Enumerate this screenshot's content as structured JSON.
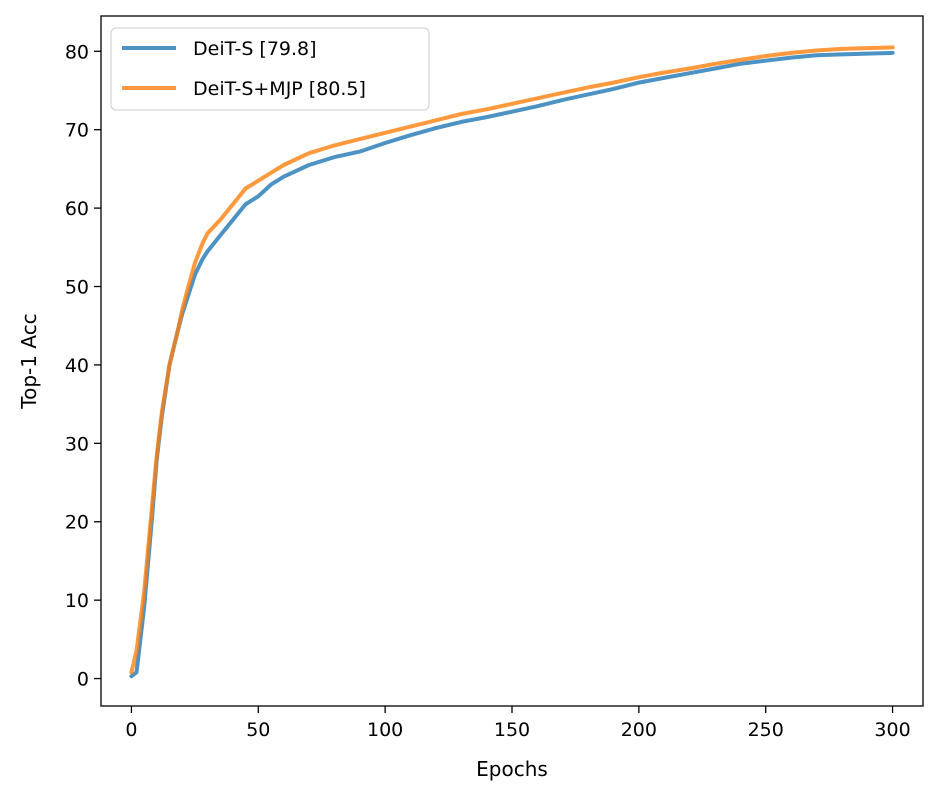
{
  "chart_data": {
    "type": "line",
    "title": "",
    "xlabel": "Epochs",
    "ylabel": "Top-1 Acc",
    "xlim": [
      -12,
      312
    ],
    "ylim": [
      -3.5,
      84.5
    ],
    "xticks": [
      0,
      50,
      100,
      150,
      200,
      250,
      300
    ],
    "yticks": [
      0,
      10,
      20,
      30,
      40,
      50,
      60,
      70,
      80
    ],
    "grid": false,
    "legend_position": "top-left",
    "x": [
      0,
      2,
      5,
      8,
      10,
      12,
      15,
      18,
      20,
      22,
      25,
      28,
      30,
      35,
      40,
      45,
      50,
      55,
      60,
      70,
      80,
      90,
      100,
      110,
      120,
      130,
      140,
      150,
      160,
      170,
      180,
      190,
      200,
      210,
      220,
      230,
      240,
      250,
      260,
      270,
      280,
      290,
      300
    ],
    "series": [
      {
        "name": "DeiT-S [79.8]",
        "color": "#1f77b4",
        "values": [
          0.3,
          0.8,
          9.0,
          20.0,
          28.0,
          33.5,
          40.0,
          44.0,
          46.5,
          48.5,
          51.5,
          53.5,
          54.5,
          56.5,
          58.5,
          60.5,
          61.5,
          63.0,
          64.0,
          65.5,
          66.5,
          67.2,
          68.3,
          69.3,
          70.2,
          71.0,
          71.6,
          72.3,
          73.0,
          73.8,
          74.5,
          75.2,
          76.0,
          76.6,
          77.2,
          77.8,
          78.4,
          78.8,
          79.2,
          79.5,
          79.6,
          79.7,
          79.8
        ]
      },
      {
        "name": "DeiT-S+MJP [80.5]",
        "color": "#ff7f0e",
        "values": [
          0.8,
          3.5,
          11.0,
          21.5,
          28.5,
          34.0,
          40.0,
          44.0,
          47.0,
          49.5,
          53.0,
          55.5,
          56.8,
          58.5,
          60.5,
          62.5,
          63.5,
          64.5,
          65.5,
          67.0,
          68.0,
          68.8,
          69.6,
          70.4,
          71.2,
          72.0,
          72.6,
          73.3,
          74.0,
          74.7,
          75.4,
          76.0,
          76.7,
          77.3,
          77.8,
          78.4,
          78.9,
          79.4,
          79.8,
          80.1,
          80.3,
          80.4,
          80.5
        ]
      }
    ]
  }
}
